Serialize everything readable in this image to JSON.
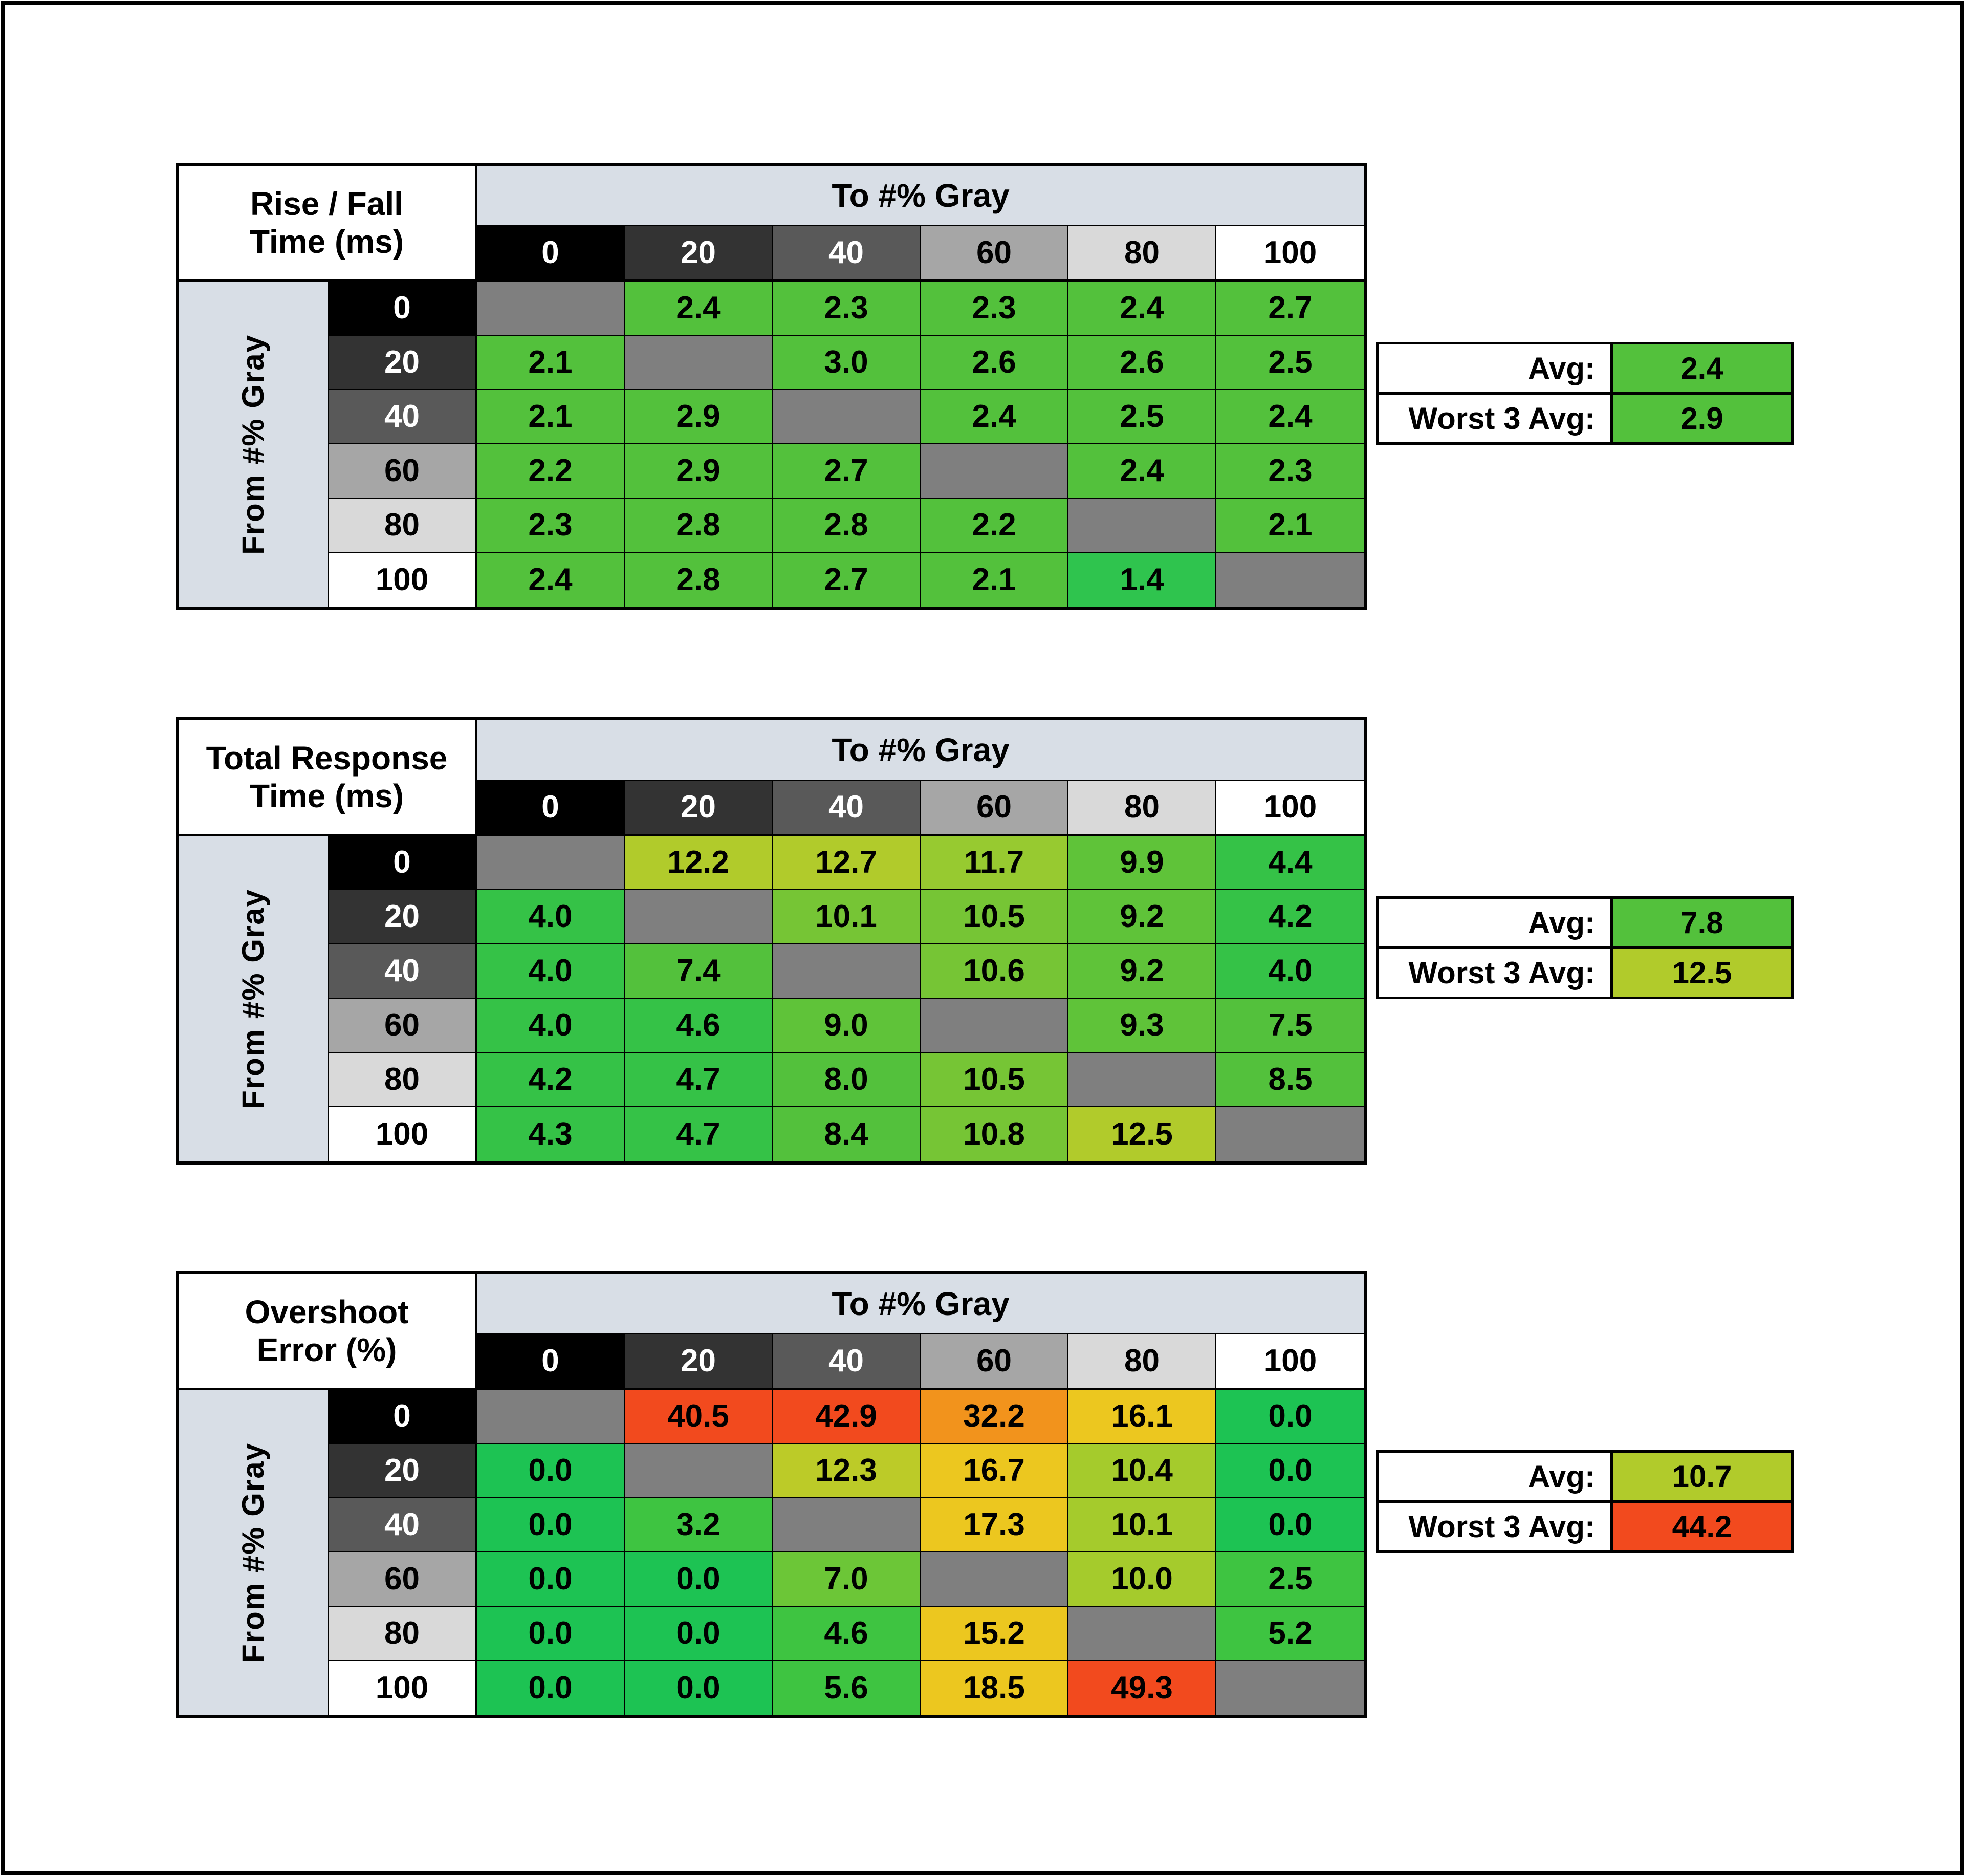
{
  "style": {
    "axis_band_bg": "#d8dee6",
    "gray_scale_bg": [
      "#000000",
      "#333333",
      "#595959",
      "#a6a6a6",
      "#d9d9d9",
      "#ffffff"
    ],
    "gray_scale_text": [
      "#ffffff",
      "#ffffff",
      "#ffffff",
      "#000000",
      "#000000",
      "#000000"
    ],
    "diagonal_bg": "#7f7f7f",
    "border_color": "#000000"
  },
  "chart_data": [
    {
      "type": "heatmap",
      "id": "rise-fall-time",
      "title_lines": [
        "Rise / Fall",
        "Time (ms)"
      ],
      "col_axis_label": "To #% Gray",
      "row_axis_label": "From #% Gray",
      "columns": [
        "0",
        "20",
        "40",
        "60",
        "80",
        "100"
      ],
      "rows": [
        "0",
        "20",
        "40",
        "60",
        "80",
        "100"
      ],
      "values": [
        [
          null,
          "2.4",
          "2.3",
          "2.3",
          "2.4",
          "2.7"
        ],
        [
          "2.1",
          null,
          "3.0",
          "2.6",
          "2.6",
          "2.5"
        ],
        [
          "2.1",
          "2.9",
          null,
          "2.4",
          "2.5",
          "2.4"
        ],
        [
          "2.2",
          "2.9",
          "2.7",
          null,
          "2.4",
          "2.3"
        ],
        [
          "2.3",
          "2.8",
          "2.8",
          "2.2",
          null,
          "2.1"
        ],
        [
          "2.4",
          "2.8",
          "2.7",
          "2.1",
          "1.4",
          null
        ]
      ],
      "cell_colors": [
        [
          null,
          "#53c13c",
          "#53c13c",
          "#53c13c",
          "#53c13c",
          "#53c13c"
        ],
        [
          "#53c13c",
          null,
          "#53c13c",
          "#53c13c",
          "#53c13c",
          "#53c13c"
        ],
        [
          "#53c13c",
          "#53c13c",
          null,
          "#53c13c",
          "#53c13c",
          "#53c13c"
        ],
        [
          "#53c13c",
          "#53c13c",
          "#53c13c",
          null,
          "#53c13c",
          "#53c13c"
        ],
        [
          "#53c13c",
          "#53c13c",
          "#53c13c",
          "#53c13c",
          null,
          "#53c13c"
        ],
        [
          "#53c13c",
          "#53c13c",
          "#53c13c",
          "#53c13c",
          "#2fc44e",
          null
        ]
      ],
      "summary": {
        "avg_label": "Avg:",
        "avg_value": "2.4",
        "avg_color": "#53c13c",
        "worst_label": "Worst 3 Avg:",
        "worst_value": "2.9",
        "worst_color": "#53c13c"
      }
    },
    {
      "type": "heatmap",
      "id": "total-response-time",
      "title_lines": [
        "Total Response",
        "Time (ms)"
      ],
      "col_axis_label": "To #% Gray",
      "row_axis_label": "From #% Gray",
      "columns": [
        "0",
        "20",
        "40",
        "60",
        "80",
        "100"
      ],
      "rows": [
        "0",
        "20",
        "40",
        "60",
        "80",
        "100"
      ],
      "values": [
        [
          null,
          "12.2",
          "12.7",
          "11.7",
          "9.9",
          "4.4"
        ],
        [
          "4.0",
          null,
          "10.1",
          "10.5",
          "9.2",
          "4.2"
        ],
        [
          "4.0",
          "7.4",
          null,
          "10.6",
          "9.2",
          "4.0"
        ],
        [
          "4.0",
          "4.6",
          "9.0",
          null,
          "9.3",
          "7.5"
        ],
        [
          "4.2",
          "4.7",
          "8.0",
          "10.5",
          null,
          "8.5"
        ],
        [
          "4.3",
          "4.7",
          "8.4",
          "10.8",
          "12.5",
          null
        ]
      ],
      "cell_colors": [
        [
          null,
          "#b1cb2b",
          "#b1cb2b",
          "#97ca30",
          "#5fc339",
          "#35c247"
        ],
        [
          "#35c247",
          null,
          "#76c535",
          "#76c535",
          "#5fc339",
          "#35c247"
        ],
        [
          "#35c247",
          "#53c13c",
          null,
          "#76c535",
          "#5fc339",
          "#35c247"
        ],
        [
          "#35c247",
          "#35c247",
          "#5fc339",
          null,
          "#5fc339",
          "#53c13c"
        ],
        [
          "#35c247",
          "#35c247",
          "#53c13c",
          "#76c535",
          null,
          "#53c13c"
        ],
        [
          "#35c247",
          "#35c247",
          "#53c13c",
          "#76c535",
          "#b1cb2b",
          null
        ]
      ],
      "summary": {
        "avg_label": "Avg:",
        "avg_value": "7.8",
        "avg_color": "#53c13c",
        "worst_label": "Worst 3 Avg:",
        "worst_value": "12.5",
        "worst_color": "#b1cb2b"
      }
    },
    {
      "type": "heatmap",
      "id": "overshoot-error",
      "title_lines": [
        "Overshoot",
        "Error (%)"
      ],
      "col_axis_label": "To #% Gray",
      "row_axis_label": "From #% Gray",
      "columns": [
        "0",
        "20",
        "40",
        "60",
        "80",
        "100"
      ],
      "rows": [
        "0",
        "20",
        "40",
        "60",
        "80",
        "100"
      ],
      "values": [
        [
          null,
          "40.5",
          "42.9",
          "32.2",
          "16.1",
          "0.0"
        ],
        [
          "0.0",
          null,
          "12.3",
          "16.7",
          "10.4",
          "0.0"
        ],
        [
          "0.0",
          "3.2",
          null,
          "17.3",
          "10.1",
          "0.0"
        ],
        [
          "0.0",
          "0.0",
          "7.0",
          null,
          "10.0",
          "2.5"
        ],
        [
          "0.0",
          "0.0",
          "4.6",
          "15.2",
          null,
          "5.2"
        ],
        [
          "0.0",
          "0.0",
          "5.6",
          "18.5",
          "49.3",
          null
        ]
      ],
      "cell_colors": [
        [
          null,
          "#f24a1e",
          "#f24a1e",
          "#f2931c",
          "#ecc71f",
          "#1dc353"
        ],
        [
          "#1dc353",
          null,
          "#bccb28",
          "#ecc71f",
          "#a5cb2c",
          "#1dc353"
        ],
        [
          "#1dc353",
          "#3ec441",
          null,
          "#ecc71f",
          "#a5cb2c",
          "#1dc353"
        ],
        [
          "#1dc353",
          "#1dc353",
          "#6cc637",
          null,
          "#a5cb2c",
          "#3ec441"
        ],
        [
          "#1dc353",
          "#1dc353",
          "#3ec441",
          "#ecc71f",
          null,
          "#3ec441"
        ],
        [
          "#1dc353",
          "#1dc353",
          "#3ec441",
          "#ecc71f",
          "#f24a1e",
          null
        ]
      ],
      "summary": {
        "avg_label": "Avg:",
        "avg_value": "10.7",
        "avg_color": "#b1cb2b",
        "worst_label": "Worst 3 Avg:",
        "worst_value": "44.2",
        "worst_color": "#f24a1e"
      }
    }
  ]
}
